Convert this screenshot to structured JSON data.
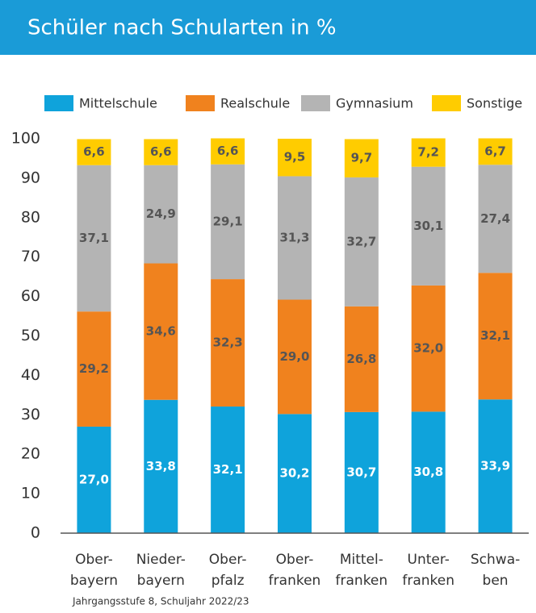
{
  "chart_data": {
    "type": "stacked_bar",
    "title": "Schüler nach Schularten in %",
    "note": "Jahrgangsstufe 8, Schuljahr 2022/23",
    "categories": [
      [
        "Ober-",
        "bayern"
      ],
      [
        "Nieder-",
        "bayern"
      ],
      [
        "Ober-",
        "pfalz"
      ],
      [
        "Ober-",
        "franken"
      ],
      [
        "Mittel-",
        "franken"
      ],
      [
        "Unter-",
        "franken"
      ],
      [
        "Schwa-",
        "ben"
      ]
    ],
    "series": [
      {
        "name": "Mittelschule",
        "color": "#0fa3db",
        "label_color": "#ffffff",
        "values": [
          27.0,
          33.8,
          32.1,
          30.2,
          30.7,
          30.8,
          33.9
        ],
        "value_labels": [
          "27,0",
          "33,8",
          "32,1",
          "30,2",
          "30,7",
          "30,8",
          "33,9"
        ]
      },
      {
        "name": "Realschule",
        "color": "#f0821e",
        "label_color": "#555555",
        "values": [
          29.2,
          34.6,
          32.3,
          29.0,
          26.8,
          32.0,
          32.1
        ],
        "value_labels": [
          "29,2",
          "34,6",
          "32,3",
          "29,0",
          "26,8",
          "32,0",
          "32,1"
        ]
      },
      {
        "name": "Gymnasium",
        "color": "#b4b4b4",
        "label_color": "#555555",
        "values": [
          37.1,
          24.9,
          29.1,
          31.3,
          32.7,
          30.1,
          27.4
        ],
        "value_labels": [
          "37,1",
          "24,9",
          "29,1",
          "31,3",
          "32,7",
          "30,1",
          "27,4"
        ]
      },
      {
        "name": "Sonstige",
        "color": "#ffcc00",
        "label_color": "#555555",
        "values": [
          6.6,
          6.6,
          6.6,
          9.5,
          9.7,
          7.2,
          6.7
        ],
        "value_labels": [
          "6,6",
          "6,6",
          "6,6",
          "9,5",
          "9,7",
          "7,2",
          "6,7"
        ]
      }
    ],
    "ylim": [
      0,
      100
    ],
    "yticks": [
      0,
      10,
      20,
      30,
      40,
      50,
      60,
      70,
      80,
      90,
      100
    ],
    "grid": false
  }
}
